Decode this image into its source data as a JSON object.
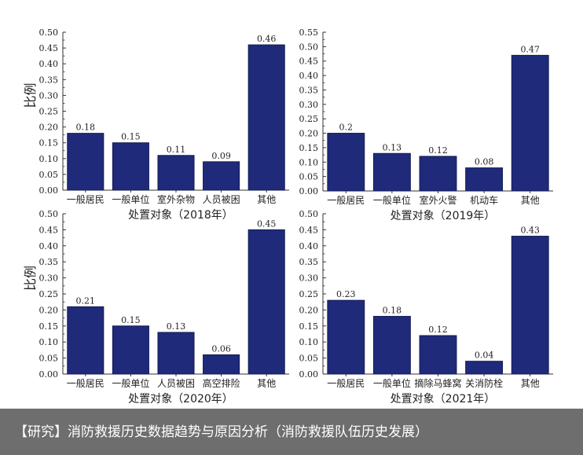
{
  "colors": {
    "bar": "#1f2a7a",
    "bar_edge": "#141c55",
    "axis": "#333333",
    "text": "#222222",
    "caption_bg": "#6e6e6e",
    "caption_text": "#ffffff"
  },
  "caption": "【研究】消防救援历史数据趋势与原因分析（消防救援队伍历史发展）",
  "chart_data": [
    {
      "type": "bar",
      "xlabel": "处置对象（2018年）",
      "ylabel": "比例",
      "ylim": [
        0,
        0.5
      ],
      "yticks": [
        "0.00",
        "0.05",
        "0.10",
        "0.15",
        "0.20",
        "0.25",
        "0.30",
        "0.35",
        "0.40",
        "0.45",
        "0.50"
      ],
      "grid": false,
      "categories": [
        "一般居民",
        "一般单位",
        "室外杂物",
        "人员被困",
        "其他"
      ],
      "values": [
        0.18,
        0.15,
        0.11,
        0.09,
        0.46
      ],
      "labels": [
        "0.18",
        "0.15",
        "0.11",
        "0.09",
        "0.46"
      ]
    },
    {
      "type": "bar",
      "xlabel": "处置对象（2019年）",
      "ylabel": "",
      "ylim": [
        0,
        0.55
      ],
      "yticks": [
        "0.00",
        "0.05",
        "0.10",
        "0.15",
        "0.20",
        "0.25",
        "0.30",
        "0.35",
        "0.40",
        "0.45",
        "0.50",
        "0.55"
      ],
      "grid": false,
      "categories": [
        "一般居民",
        "一般单位",
        "室外火警",
        "机动车",
        "其他"
      ],
      "values": [
        0.2,
        0.13,
        0.12,
        0.08,
        0.47
      ],
      "labels": [
        "0.2",
        "0.13",
        "0.12",
        "0.08",
        "0.47"
      ]
    },
    {
      "type": "bar",
      "xlabel": "处置对象（2020年）",
      "ylabel": "比例",
      "ylim": [
        0,
        0.5
      ],
      "yticks": [
        "0.00",
        "0.05",
        "0.10",
        "0.15",
        "0.20",
        "0.25",
        "0.30",
        "0.35",
        "0.40",
        "0.45",
        "0.50"
      ],
      "grid": false,
      "categories": [
        "一般居民",
        "一般单位",
        "人员被困",
        "高空排险",
        "其他"
      ],
      "values": [
        0.21,
        0.15,
        0.13,
        0.06,
        0.45
      ],
      "labels": [
        "0.21",
        "0.15",
        "0.13",
        "0.06",
        "0.45"
      ]
    },
    {
      "type": "bar",
      "xlabel": "处置对象（2021年）",
      "ylabel": "",
      "ylim": [
        0,
        0.5
      ],
      "yticks": [
        "0.00",
        "0.05",
        "0.10",
        "0.15",
        "0.20",
        "0.25",
        "0.30",
        "0.35",
        "0.40",
        "0.45",
        "0.50"
      ],
      "grid": false,
      "categories": [
        "一般居民",
        "一般单位",
        "摘除马蜂窝",
        "关消防栓",
        "其他"
      ],
      "values": [
        0.23,
        0.18,
        0.12,
        0.04,
        0.43
      ],
      "labels": [
        "0.23",
        "0.18",
        "0.12",
        "0.04",
        "0.43"
      ]
    }
  ]
}
